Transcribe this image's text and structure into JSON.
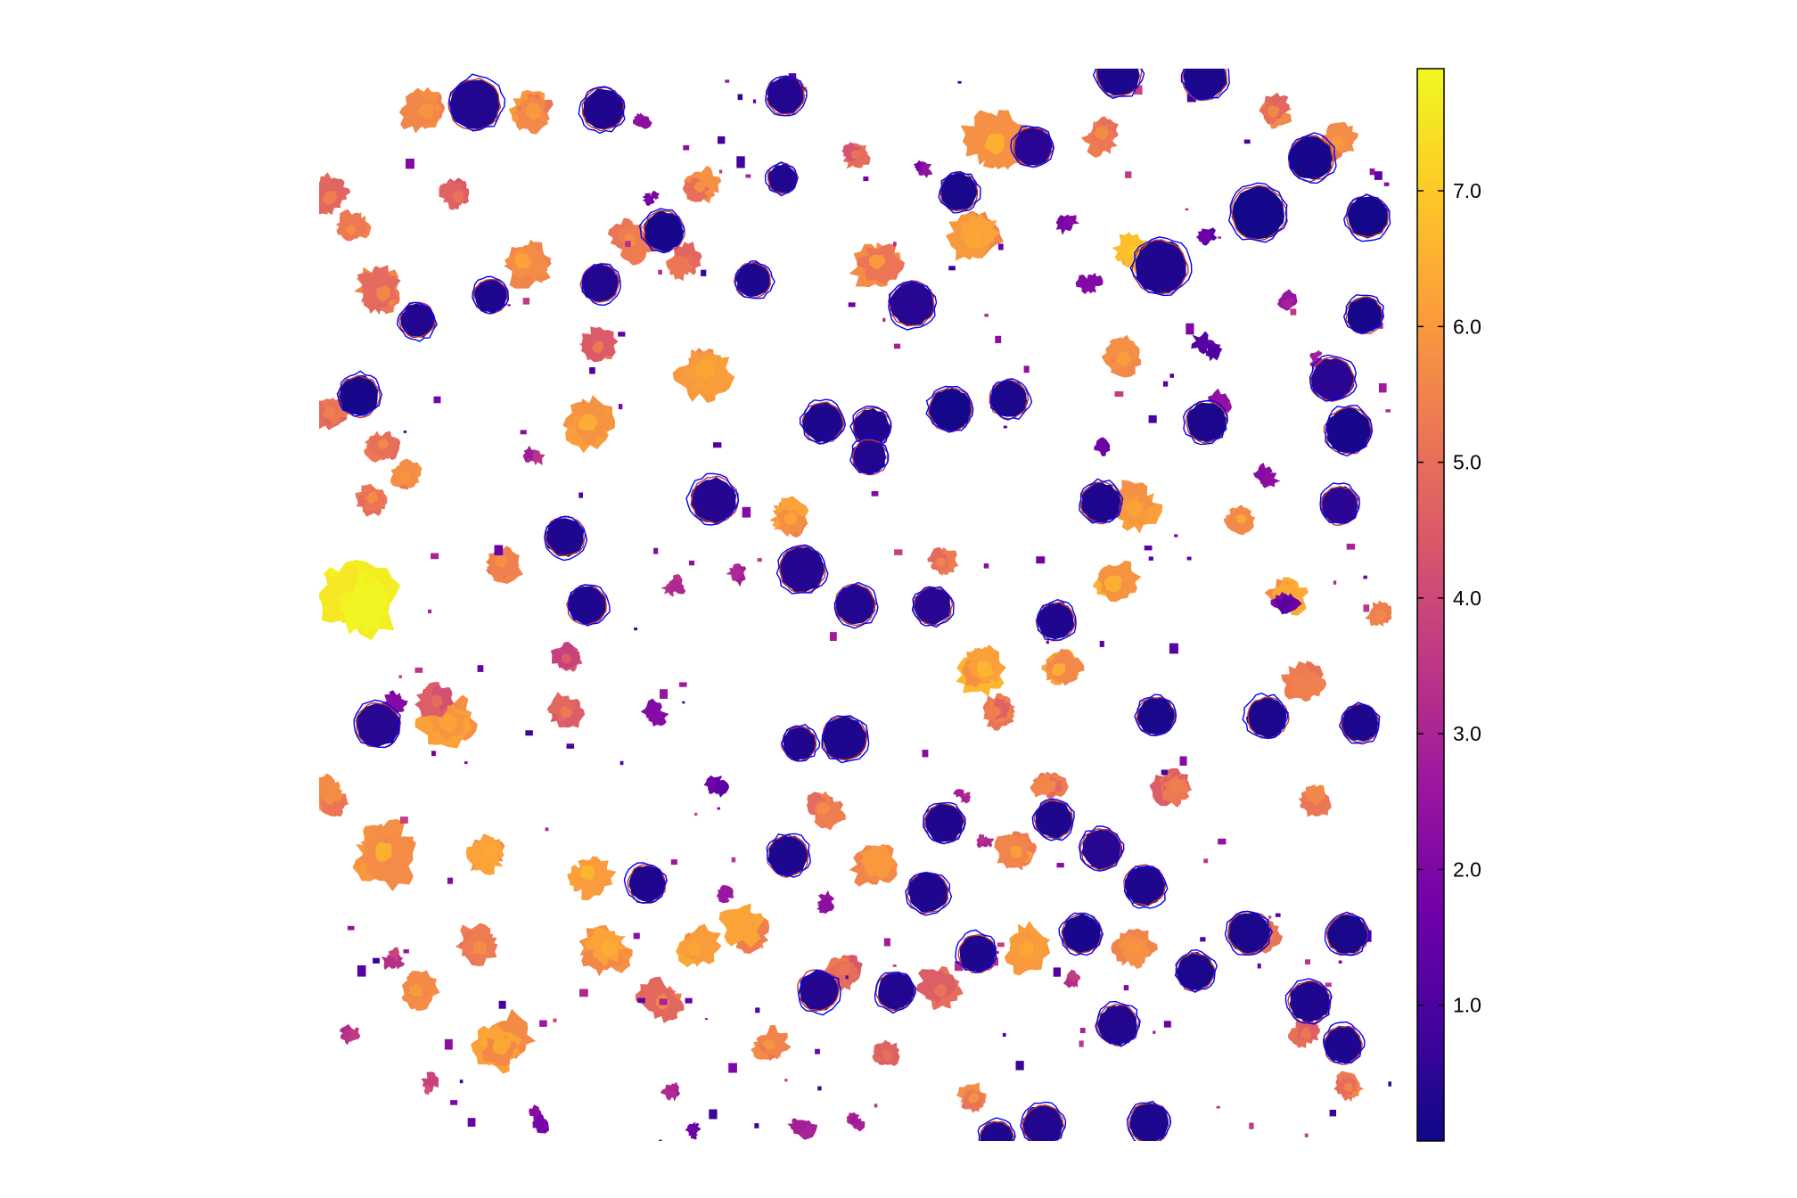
{
  "chart_data": {
    "type": "heatmap",
    "title": "",
    "xlabel": "",
    "ylabel": "",
    "colorbar": {
      "palette": "plasma",
      "range": [
        0.0,
        7.9
      ],
      "ticks": [
        1.0,
        2.0,
        3.0,
        4.0,
        5.0,
        6.0,
        7.0
      ],
      "tick_labels": [
        "1.0",
        "2.0",
        "3.0",
        "4.0",
        "5.0",
        "6.0",
        "7.0"
      ],
      "stops": [
        "#0d0887",
        "#46039f",
        "#7201a8",
        "#9c179e",
        "#bd3786",
        "#d8576b",
        "#ed7953",
        "#fb9f3a",
        "#fdca26",
        "#f0f921"
      ]
    },
    "outline_colors": {
      "predicted": "#0000ff",
      "observed": "#c0392b"
    },
    "cells": {
      "round_dark": [
        [
          0.145,
          0.033,
          0.38,
          0.32
        ],
        [
          0.265,
          0.038,
          0.31,
          0.3
        ],
        [
          0.435,
          0.025,
          0.28,
          0.34
        ],
        [
          0.745,
          0.005,
          0.33,
          0.25
        ],
        [
          0.826,
          0.008,
          0.33,
          0.2
        ],
        [
          0.666,
          0.073,
          0.29,
          0.44
        ],
        [
          0.925,
          0.083,
          0.33,
          0.16
        ],
        [
          0.432,
          0.103,
          0.22,
          0.32
        ],
        [
          0.596,
          0.115,
          0.28,
          0.18
        ],
        [
          0.978,
          0.138,
          0.31,
          0.1
        ],
        [
          0.321,
          0.152,
          0.3,
          0.16
        ],
        [
          0.876,
          0.135,
          0.4,
          0.1
        ],
        [
          0.785,
          0.185,
          0.4,
          0.3
        ],
        [
          0.262,
          0.2,
          0.28,
          0.33
        ],
        [
          0.405,
          0.197,
          0.26,
          0.24
        ],
        [
          0.16,
          0.212,
          0.25,
          0.27
        ],
        [
          0.553,
          0.219,
          0.33,
          0.4
        ],
        [
          0.092,
          0.235,
          0.26,
          0.32
        ],
        [
          0.975,
          0.23,
          0.27,
          0.14
        ],
        [
          0.945,
          0.29,
          0.32,
          0.45
        ],
        [
          0.037,
          0.305,
          0.3,
          0.15
        ],
        [
          0.47,
          0.33,
          0.3,
          0.25
        ],
        [
          0.589,
          0.318,
          0.32,
          0.12
        ],
        [
          0.515,
          0.335,
          0.28,
          0.3
        ],
        [
          0.643,
          0.308,
          0.28,
          0.2
        ],
        [
          0.828,
          0.33,
          0.3,
          0.2
        ],
        [
          0.96,
          0.338,
          0.34,
          0.14
        ],
        [
          0.513,
          0.362,
          0.26,
          0.33
        ],
        [
          0.368,
          0.403,
          0.34,
          0.36
        ],
        [
          0.729,
          0.405,
          0.3,
          0.26
        ],
        [
          0.952,
          0.407,
          0.28,
          0.46
        ],
        [
          0.229,
          0.437,
          0.29,
          0.28
        ],
        [
          0.45,
          0.467,
          0.34,
          0.36
        ],
        [
          0.25,
          0.5,
          0.29,
          0.26
        ],
        [
          0.5,
          0.5,
          0.3,
          0.34
        ],
        [
          0.572,
          0.501,
          0.28,
          0.42
        ],
        [
          0.687,
          0.515,
          0.28,
          0.3
        ],
        [
          0.055,
          0.612,
          0.33,
          0.4
        ],
        [
          0.781,
          0.604,
          0.28,
          0.18
        ],
        [
          0.884,
          0.605,
          0.3,
          0.2
        ],
        [
          0.971,
          0.61,
          0.28,
          0.25
        ],
        [
          0.49,
          0.625,
          0.33,
          0.24
        ],
        [
          0.448,
          0.629,
          0.25,
          0.3
        ],
        [
          0.583,
          0.703,
          0.29,
          0.3
        ],
        [
          0.685,
          0.7,
          0.28,
          0.24
        ],
        [
          0.73,
          0.728,
          0.3,
          0.4
        ],
        [
          0.437,
          0.734,
          0.3,
          0.24
        ],
        [
          0.568,
          0.768,
          0.3,
          0.28
        ],
        [
          0.77,
          0.762,
          0.3,
          0.28
        ],
        [
          0.306,
          0.76,
          0.28,
          0.3
        ],
        [
          0.959,
          0.807,
          0.3,
          0.18
        ],
        [
          0.867,
          0.806,
          0.31,
          0.2
        ],
        [
          0.711,
          0.807,
          0.29,
          0.17
        ],
        [
          0.614,
          0.825,
          0.28,
          0.28
        ],
        [
          0.817,
          0.842,
          0.28,
          0.22
        ],
        [
          0.466,
          0.86,
          0.3,
          0.36
        ],
        [
          0.538,
          0.86,
          0.28,
          0.32
        ],
        [
          0.924,
          0.87,
          0.31,
          0.28
        ],
        [
          0.774,
          0.983,
          0.3,
          0.25
        ],
        [
          0.675,
          0.985,
          0.3,
          0.32
        ],
        [
          0.632,
          0.997,
          0.25,
          0.3
        ],
        [
          0.955,
          0.91,
          0.28,
          0.26
        ],
        [
          0.745,
          0.892,
          0.3,
          0.34
        ]
      ],
      "blob_warm": [
        [
          0.01,
          0.12,
          0.55,
          5.0
        ],
        [
          0.1,
          0.04,
          0.6,
          5.5
        ],
        [
          0.2,
          0.04,
          0.6,
          5.6
        ],
        [
          0.06,
          0.21,
          0.6,
          5.2
        ],
        [
          0.19,
          0.18,
          0.62,
          5.8
        ],
        [
          0.29,
          0.16,
          0.5,
          5.3
        ],
        [
          0.355,
          0.11,
          0.45,
          5.4
        ],
        [
          0.52,
          0.18,
          0.6,
          5.6
        ],
        [
          0.63,
          0.07,
          0.8,
          6.1
        ],
        [
          0.61,
          0.16,
          0.65,
          5.9
        ],
        [
          0.73,
          0.06,
          0.5,
          5.3
        ],
        [
          0.76,
          0.17,
          0.5,
          6.6
        ],
        [
          0.95,
          0.07,
          0.55,
          5.6
        ],
        [
          0.89,
          0.04,
          0.45,
          5.2
        ],
        [
          0.13,
          0.12,
          0.45,
          4.7
        ],
        [
          0.26,
          0.26,
          0.45,
          4.9
        ],
        [
          0.36,
          0.28,
          0.7,
          5.9
        ],
        [
          0.34,
          0.18,
          0.4,
          4.8
        ],
        [
          0.06,
          0.35,
          0.42,
          5.2
        ],
        [
          0.01,
          0.32,
          0.42,
          5.0
        ],
        [
          0.25,
          0.33,
          0.7,
          6.0
        ],
        [
          0.08,
          0.38,
          0.4,
          5.5
        ],
        [
          0.05,
          0.4,
          0.45,
          5.3
        ],
        [
          0.03,
          0.5,
          1.05,
          7.4
        ],
        [
          0.17,
          0.46,
          0.5,
          5.4
        ],
        [
          0.12,
          0.61,
          0.7,
          5.8
        ],
        [
          0.01,
          0.68,
          0.5,
          5.3
        ],
        [
          0.06,
          0.73,
          0.75,
          6.1
        ],
        [
          0.16,
          0.73,
          0.55,
          5.9
        ],
        [
          0.25,
          0.75,
          0.6,
          6.2
        ],
        [
          0.44,
          0.42,
          0.5,
          5.8
        ],
        [
          0.62,
          0.56,
          0.7,
          6.2
        ],
        [
          0.68,
          0.67,
          0.4,
          5.2
        ],
        [
          0.76,
          0.41,
          0.65,
          5.8
        ],
        [
          0.74,
          0.48,
          0.68,
          6.1
        ],
        [
          0.69,
          0.56,
          0.55,
          6.0
        ],
        [
          0.58,
          0.46,
          0.35,
          5.1
        ],
        [
          0.47,
          0.69,
          0.5,
          5.3
        ],
        [
          0.52,
          0.74,
          0.6,
          5.6
        ],
        [
          0.65,
          0.73,
          0.5,
          5.7
        ],
        [
          0.63,
          0.6,
          0.45,
          5.0
        ],
        [
          0.86,
          0.42,
          0.4,
          5.9
        ],
        [
          0.9,
          0.49,
          0.5,
          6.0
        ],
        [
          0.8,
          0.67,
          0.55,
          5.0
        ],
        [
          0.93,
          0.68,
          0.45,
          5.2
        ],
        [
          0.92,
          0.57,
          0.5,
          5.0
        ],
        [
          0.15,
          0.82,
          0.6,
          5.3
        ],
        [
          0.27,
          0.82,
          0.6,
          6.0
        ],
        [
          0.35,
          0.82,
          0.55,
          5.9
        ],
        [
          0.09,
          0.86,
          0.5,
          5.6
        ],
        [
          0.17,
          0.91,
          0.7,
          5.9
        ],
        [
          0.42,
          0.91,
          0.45,
          5.5
        ],
        [
          0.32,
          0.87,
          0.55,
          5.2
        ],
        [
          0.4,
          0.8,
          0.6,
          5.8
        ],
        [
          0.49,
          0.84,
          0.45,
          4.8
        ],
        [
          0.58,
          0.86,
          0.5,
          4.7
        ],
        [
          0.66,
          0.82,
          0.6,
          5.9
        ],
        [
          0.76,
          0.82,
          0.5,
          5.5
        ],
        [
          0.88,
          0.81,
          0.4,
          5.0
        ],
        [
          0.92,
          0.9,
          0.45,
          4.8
        ],
        [
          0.11,
          0.59,
          0.45,
          4.5
        ],
        [
          0.23,
          0.55,
          0.4,
          4.1
        ],
        [
          0.61,
          0.96,
          0.4,
          5.4
        ],
        [
          0.96,
          0.95,
          0.35,
          5.1
        ],
        [
          0.5,
          0.08,
          0.4,
          4.7
        ],
        [
          0.75,
          0.27,
          0.55,
          5.7
        ],
        [
          0.03,
          0.15,
          0.4,
          5.3
        ],
        [
          0.23,
          0.6,
          0.45,
          4.9
        ],
        [
          0.99,
          0.51,
          0.4,
          5.2
        ],
        [
          0.53,
          0.92,
          0.45,
          4.6
        ],
        [
          0.44,
          0.02,
          0.4,
          5.0
        ]
      ],
      "blob_cool": [
        [
          0.3,
          0.05,
          0.3,
          2.6
        ],
        [
          0.31,
          0.12,
          0.3,
          2.2
        ],
        [
          0.7,
          0.14,
          0.4,
          2.1
        ],
        [
          0.72,
          0.2,
          0.35,
          1.8
        ],
        [
          0.83,
          0.26,
          0.45,
          1.3
        ],
        [
          0.84,
          0.31,
          0.4,
          2.4
        ],
        [
          0.31,
          0.6,
          0.4,
          2.1
        ],
        [
          0.39,
          0.47,
          0.3,
          2.8
        ],
        [
          0.37,
          0.67,
          0.35,
          1.6
        ],
        [
          0.2,
          0.36,
          0.35,
          3.0
        ],
        [
          0.9,
          0.5,
          0.45,
          1.7
        ],
        [
          0.88,
          0.38,
          0.35,
          2.5
        ],
        [
          0.62,
          0.72,
          0.35,
          3.0
        ],
        [
          0.38,
          0.77,
          0.35,
          2.3
        ],
        [
          0.2,
          0.98,
          0.4,
          1.9
        ],
        [
          0.33,
          0.95,
          0.35,
          2.8
        ],
        [
          0.45,
          0.99,
          0.4,
          2.6
        ],
        [
          0.6,
          0.68,
          0.3,
          3.1
        ],
        [
          0.7,
          0.85,
          0.3,
          3.3
        ],
        [
          0.07,
          0.83,
          0.35,
          3.6
        ],
        [
          0.1,
          0.95,
          0.35,
          3.9
        ],
        [
          0.03,
          0.9,
          0.35,
          3.3
        ],
        [
          0.9,
          0.22,
          0.35,
          2.9
        ],
        [
          0.93,
          0.27,
          0.3,
          2.7
        ],
        [
          0.47,
          0.78,
          0.3,
          2.2
        ],
        [
          0.07,
          0.59,
          0.35,
          1.9
        ],
        [
          0.56,
          0.09,
          0.3,
          2.0
        ],
        [
          0.33,
          0.48,
          0.3,
          3.0
        ],
        [
          0.83,
          0.16,
          0.3,
          1.4
        ],
        [
          0.5,
          0.98,
          0.3,
          3.1
        ],
        [
          0.35,
          0.99,
          0.3,
          1.8
        ],
        [
          0.73,
          0.35,
          0.3,
          1.5
        ]
      ]
    }
  }
}
